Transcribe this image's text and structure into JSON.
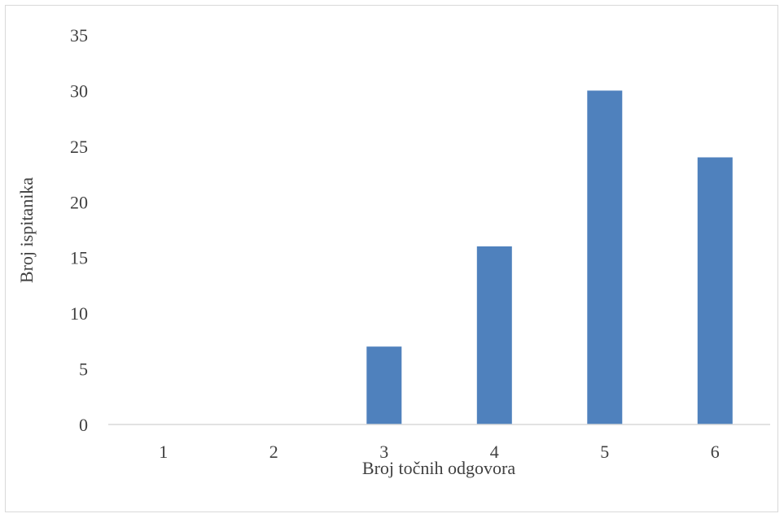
{
  "chart_data": {
    "type": "bar",
    "categories": [
      "1",
      "2",
      "3",
      "4",
      "5",
      "6"
    ],
    "values": [
      0,
      0,
      7,
      16,
      30,
      24
    ],
    "title": "",
    "xlabel": "Broj točnih odgovora",
    "ylabel": "Broj ispitanika",
    "ylim": [
      0,
      35
    ],
    "yticks": [
      "0",
      "5",
      "10",
      "15",
      "20",
      "25",
      "30",
      "35"
    ],
    "grid": false,
    "legend": "none",
    "bar_color": "#4f81bd",
    "axis_color": "#d9d9d9"
  }
}
